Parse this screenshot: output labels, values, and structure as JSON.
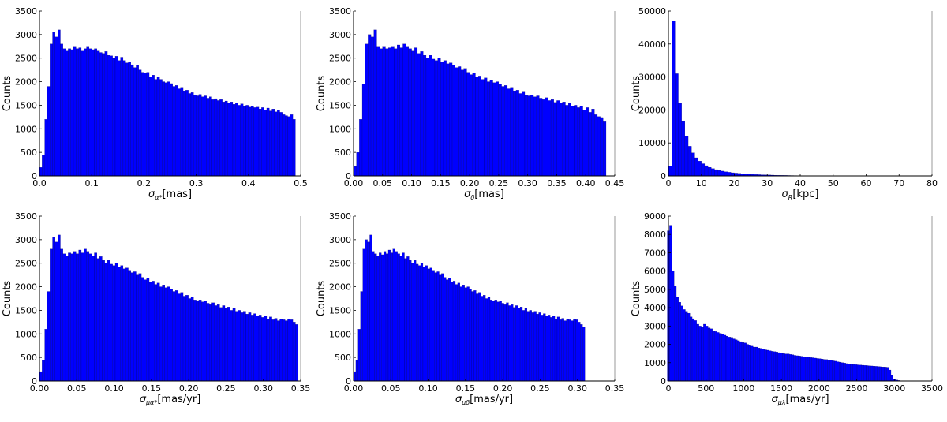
{
  "chart_data": [
    {
      "type": "bar",
      "xlabel_sym": "σ",
      "xlabel_sub": "α*",
      "xlabel_unit": "[mas]",
      "ylabel": "Counts",
      "color": "#0000ff",
      "xlim": [
        0,
        0.5
      ],
      "ylim": [
        0,
        3500
      ],
      "xticks": [
        "0.0",
        "0.1",
        "0.2",
        "0.3",
        "0.4",
        "0.5"
      ],
      "yticks": [
        "0",
        "500",
        "1000",
        "1500",
        "2000",
        "2500",
        "3000",
        "3500"
      ],
      "bin_width": 0.005,
      "x": [
        0.005,
        0.01,
        0.015,
        0.02,
        0.025,
        0.03,
        0.035,
        0.04,
        0.045,
        0.05,
        0.055,
        0.06,
        0.065,
        0.07,
        0.075,
        0.08,
        0.085,
        0.09,
        0.095,
        0.1,
        0.105,
        0.11,
        0.115,
        0.12,
        0.125,
        0.13,
        0.135,
        0.14,
        0.145,
        0.15,
        0.155,
        0.16,
        0.165,
        0.17,
        0.175,
        0.18,
        0.185,
        0.19,
        0.195,
        0.2,
        0.205,
        0.21,
        0.215,
        0.22,
        0.225,
        0.23,
        0.235,
        0.24,
        0.245,
        0.25,
        0.255,
        0.26,
        0.265,
        0.27,
        0.275,
        0.28,
        0.285,
        0.29,
        0.295,
        0.3,
        0.305,
        0.31,
        0.315,
        0.32,
        0.325,
        0.33,
        0.335,
        0.34,
        0.345,
        0.35,
        0.355,
        0.36,
        0.365,
        0.37,
        0.375,
        0.38,
        0.385,
        0.39,
        0.395,
        0.4,
        0.405,
        0.41,
        0.415,
        0.42,
        0.425,
        0.43,
        0.435,
        0.44,
        0.445,
        0.45,
        0.455,
        0.46,
        0.465,
        0.47,
        0.475,
        0.48,
        0.485,
        0.49
      ],
      "values": [
        180,
        450,
        1200,
        1900,
        2800,
        3050,
        2950,
        3100,
        2800,
        2700,
        2650,
        2700,
        2680,
        2750,
        2700,
        2720,
        2650,
        2700,
        2750,
        2700,
        2680,
        2700,
        2650,
        2620,
        2600,
        2640,
        2560,
        2550,
        2500,
        2540,
        2450,
        2520,
        2450,
        2400,
        2420,
        2360,
        2300,
        2350,
        2250,
        2200,
        2180,
        2200,
        2100,
        2140,
        2050,
        2100,
        2050,
        2000,
        1980,
        2000,
        1960,
        1900,
        1920,
        1850,
        1880,
        1800,
        1820,
        1750,
        1770,
        1720,
        1700,
        1730,
        1680,
        1700,
        1650,
        1680,
        1620,
        1640,
        1600,
        1620,
        1570,
        1590,
        1550,
        1570,
        1520,
        1550,
        1500,
        1530,
        1480,
        1500,
        1460,
        1480,
        1450,
        1460,
        1420,
        1450,
        1400,
        1440,
        1380,
        1420,
        1360,
        1400,
        1350,
        1300,
        1280,
        1260,
        1300,
        1200
      ]
    },
    {
      "type": "bar",
      "xlabel_sym": "σ",
      "xlabel_sub": "δ",
      "xlabel_unit": "[mas]",
      "ylabel": "Counts",
      "color": "#0000ff",
      "xlim": [
        0,
        0.45
      ],
      "ylim": [
        0,
        3500
      ],
      "xticks": [
        "0.00",
        "0.05",
        "0.10",
        "0.15",
        "0.20",
        "0.25",
        "0.30",
        "0.35",
        "0.40",
        "0.45"
      ],
      "yticks": [
        "0",
        "500",
        "1000",
        "1500",
        "2000",
        "2500",
        "3000",
        "3500"
      ],
      "bin_width": 0.005,
      "x": [
        0.005,
        0.01,
        0.015,
        0.02,
        0.025,
        0.03,
        0.035,
        0.04,
        0.045,
        0.05,
        0.055,
        0.06,
        0.065,
        0.07,
        0.075,
        0.08,
        0.085,
        0.09,
        0.095,
        0.1,
        0.105,
        0.11,
        0.115,
        0.12,
        0.125,
        0.13,
        0.135,
        0.14,
        0.145,
        0.15,
        0.155,
        0.16,
        0.165,
        0.17,
        0.175,
        0.18,
        0.185,
        0.19,
        0.195,
        0.2,
        0.205,
        0.21,
        0.215,
        0.22,
        0.225,
        0.23,
        0.235,
        0.24,
        0.245,
        0.25,
        0.255,
        0.26,
        0.265,
        0.27,
        0.275,
        0.28,
        0.285,
        0.29,
        0.295,
        0.3,
        0.305,
        0.31,
        0.315,
        0.32,
        0.325,
        0.33,
        0.335,
        0.34,
        0.345,
        0.35,
        0.355,
        0.36,
        0.365,
        0.37,
        0.375,
        0.38,
        0.385,
        0.39,
        0.395,
        0.4,
        0.405,
        0.41,
        0.415,
        0.42,
        0.425,
        0.43,
        0.435
      ],
      "values": [
        200,
        500,
        1200,
        1950,
        2800,
        3000,
        2950,
        3100,
        2750,
        2700,
        2750,
        2700,
        2720,
        2750,
        2700,
        2780,
        2720,
        2800,
        2750,
        2700,
        2650,
        2720,
        2600,
        2640,
        2560,
        2500,
        2560,
        2480,
        2450,
        2500,
        2420,
        2450,
        2380,
        2400,
        2350,
        2300,
        2320,
        2250,
        2280,
        2200,
        2150,
        2180,
        2100,
        2120,
        2050,
        2080,
        2000,
        2040,
        1980,
        2000,
        1950,
        1900,
        1920,
        1850,
        1880,
        1800,
        1820,
        1750,
        1780,
        1720,
        1700,
        1720,
        1680,
        1700,
        1650,
        1620,
        1660,
        1600,
        1620,
        1560,
        1600,
        1550,
        1570,
        1500,
        1540,
        1480,
        1500,
        1450,
        1480,
        1400,
        1450,
        1350,
        1420,
        1300,
        1260,
        1240,
        1150
      ]
    },
    {
      "type": "bar",
      "xlabel_sym": "σ",
      "xlabel_sub": "R",
      "xlabel_unit": "[kpc]",
      "ylabel": "Counts",
      "color": "#0000ff",
      "xlim": [
        0,
        80
      ],
      "ylim": [
        0,
        50000
      ],
      "xticks": [
        "0",
        "10",
        "20",
        "30",
        "40",
        "50",
        "60",
        "70",
        "80"
      ],
      "yticks": [
        "0",
        "10000",
        "20000",
        "30000",
        "40000",
        "50000"
      ],
      "bin_width": 1,
      "x": [
        1,
        2,
        3,
        4,
        5,
        6,
        7,
        8,
        9,
        10,
        11,
        12,
        13,
        14,
        15,
        16,
        17,
        18,
        19,
        20,
        21,
        22,
        23,
        24,
        25,
        26,
        27,
        28,
        29,
        30,
        31,
        32,
        33,
        34,
        35,
        36,
        37,
        38,
        39,
        40,
        41,
        42,
        43,
        44
      ],
      "values": [
        3000,
        47000,
        31000,
        22000,
        16500,
        12000,
        9000,
        7000,
        5500,
        4500,
        3700,
        3100,
        2600,
        2200,
        1900,
        1650,
        1450,
        1250,
        1100,
        950,
        850,
        750,
        650,
        580,
        520,
        460,
        410,
        370,
        330,
        300,
        270,
        240,
        210,
        190,
        170,
        150,
        130,
        115,
        100,
        90,
        80,
        70,
        60,
        50
      ]
    },
    {
      "type": "bar",
      "xlabel_sym": "σ",
      "xlabel_sub": "μα*",
      "xlabel_unit": "[mas/yr]",
      "ylabel": "Counts",
      "color": "#0000ff",
      "xlim": [
        0,
        0.35
      ],
      "ylim": [
        0,
        3500
      ],
      "xticks": [
        "0.00",
        "0.05",
        "0.10",
        "0.15",
        "0.20",
        "0.25",
        "0.30",
        "0.35"
      ],
      "yticks": [
        "0",
        "500",
        "1000",
        "1500",
        "2000",
        "2500",
        "3000",
        "3500"
      ],
      "bin_width": 0.0035,
      "x": [
        0.0035,
        0.007,
        0.0105,
        0.014,
        0.0175,
        0.021,
        0.0245,
        0.028,
        0.0315,
        0.035,
        0.0385,
        0.042,
        0.0455,
        0.049,
        0.0525,
        0.056,
        0.0595,
        0.063,
        0.0665,
        0.07,
        0.0735,
        0.077,
        0.0805,
        0.084,
        0.0875,
        0.091,
        0.0945,
        0.098,
        0.1015,
        0.105,
        0.1085,
        0.112,
        0.1155,
        0.119,
        0.1225,
        0.126,
        0.1295,
        0.133,
        0.1365,
        0.14,
        0.1435,
        0.147,
        0.1505,
        0.154,
        0.1575,
        0.161,
        0.1645,
        0.168,
        0.1715,
        0.175,
        0.1785,
        0.182,
        0.1855,
        0.189,
        0.1925,
        0.196,
        0.1995,
        0.203,
        0.2065,
        0.21,
        0.2135,
        0.217,
        0.2205,
        0.224,
        0.2275,
        0.231,
        0.2345,
        0.238,
        0.2415,
        0.245,
        0.2485,
        0.252,
        0.2555,
        0.259,
        0.2625,
        0.266,
        0.2695,
        0.273,
        0.2765,
        0.28,
        0.2835,
        0.287,
        0.2905,
        0.294,
        0.2975,
        0.301,
        0.3045,
        0.308,
        0.3115,
        0.315,
        0.3185,
        0.322,
        0.3255,
        0.329,
        0.3325,
        0.336,
        0.3395,
        0.343,
        0.3465
      ],
      "values": [
        200,
        450,
        1100,
        1900,
        2800,
        3050,
        2950,
        3100,
        2800,
        2700,
        2650,
        2720,
        2700,
        2750,
        2700,
        2780,
        2720,
        2800,
        2750,
        2700,
        2650,
        2720,
        2600,
        2640,
        2560,
        2500,
        2560,
        2480,
        2450,
        2500,
        2420,
        2450,
        2380,
        2400,
        2350,
        2300,
        2320,
        2250,
        2280,
        2200,
        2150,
        2180,
        2100,
        2120,
        2050,
        2080,
        2000,
        2040,
        1980,
        2000,
        1950,
        1900,
        1920,
        1850,
        1880,
        1800,
        1820,
        1750,
        1780,
        1720,
        1700,
        1720,
        1680,
        1700,
        1650,
        1620,
        1660,
        1600,
        1620,
        1560,
        1600,
        1550,
        1570,
        1500,
        1540,
        1480,
        1500,
        1450,
        1480,
        1420,
        1450,
        1400,
        1430,
        1380,
        1400,
        1350,
        1380,
        1320,
        1360,
        1300,
        1330,
        1280,
        1310,
        1300,
        1280,
        1320,
        1300,
        1250,
        1200
      ]
    },
    {
      "type": "bar",
      "xlabel_sym": "σ",
      "xlabel_sub": "μδ",
      "xlabel_unit": "[mas/yr]",
      "ylabel": "Counts",
      "color": "#0000ff",
      "xlim": [
        0,
        0.35
      ],
      "ylim": [
        0,
        3500
      ],
      "xticks": [
        "0.00",
        "0.05",
        "0.10",
        "0.15",
        "0.20",
        "0.25",
        "0.30",
        "0.35"
      ],
      "yticks": [
        "0",
        "500",
        "1000",
        "1500",
        "2000",
        "2500",
        "3000",
        "3500"
      ],
      "bin_width": 0.0031,
      "x": [
        0.0031,
        0.0062,
        0.0093,
        0.0124,
        0.0155,
        0.0186,
        0.0217,
        0.0248,
        0.0279,
        0.031,
        0.0341,
        0.0372,
        0.0403,
        0.0434,
        0.0465,
        0.0496,
        0.0527,
        0.0558,
        0.0589,
        0.062,
        0.0651,
        0.0682,
        0.0713,
        0.0744,
        0.0775,
        0.0806,
        0.0837,
        0.0868,
        0.0899,
        0.093,
        0.0961,
        0.0992,
        0.1023,
        0.1054,
        0.1085,
        0.1116,
        0.1147,
        0.1178,
        0.1209,
        0.124,
        0.1271,
        0.1302,
        0.1333,
        0.1364,
        0.1395,
        0.1426,
        0.1457,
        0.1488,
        0.1519,
        0.155,
        0.1581,
        0.1612,
        0.1643,
        0.1674,
        0.1705,
        0.1736,
        0.1767,
        0.1798,
        0.1829,
        0.186,
        0.1891,
        0.1922,
        0.1953,
        0.1984,
        0.2015,
        0.2046,
        0.2077,
        0.2108,
        0.2139,
        0.217,
        0.2201,
        0.2232,
        0.2263,
        0.2294,
        0.2325,
        0.2356,
        0.2387,
        0.2418,
        0.2449,
        0.248,
        0.2511,
        0.2542,
        0.2573,
        0.2604,
        0.2635,
        0.2666,
        0.2697,
        0.2728,
        0.2759,
        0.279,
        0.2821,
        0.2852,
        0.2883,
        0.2914,
        0.2945,
        0.2976,
        0.3007,
        0.3038,
        0.3069,
        0.31
      ],
      "values": [
        200,
        450,
        1100,
        1900,
        2800,
        3000,
        2950,
        3100,
        2750,
        2700,
        2650,
        2720,
        2680,
        2750,
        2700,
        2780,
        2720,
        2800,
        2750,
        2700,
        2650,
        2720,
        2600,
        2640,
        2560,
        2500,
        2560,
        2480,
        2450,
        2500,
        2420,
        2450,
        2380,
        2400,
        2350,
        2300,
        2320,
        2250,
        2280,
        2200,
        2150,
        2180,
        2100,
        2120,
        2050,
        2080,
        2000,
        2040,
        1980,
        2000,
        1950,
        1900,
        1920,
        1850,
        1880,
        1800,
        1820,
        1750,
        1780,
        1720,
        1700,
        1720,
        1680,
        1700,
        1650,
        1620,
        1660,
        1600,
        1620,
        1560,
        1600,
        1550,
        1570,
        1500,
        1540,
        1480,
        1500,
        1450,
        1480,
        1420,
        1450,
        1400,
        1430,
        1380,
        1400,
        1350,
        1380,
        1320,
        1360,
        1300,
        1330,
        1280,
        1310,
        1300,
        1280,
        1320,
        1300,
        1250,
        1200,
        1150
      ]
    },
    {
      "type": "bar",
      "xlabel_sym": "σ",
      "xlabel_sub": "μλ",
      "xlabel_unit": "[mas/yr]",
      "ylabel": "Counts",
      "color": "#0000ff",
      "xlim": [
        0,
        3500
      ],
      "ylim": [
        0,
        9000
      ],
      "xticks": [
        "0",
        "500",
        "1000",
        "1500",
        "2000",
        "2500",
        "3000",
        "3500"
      ],
      "yticks": [
        "0",
        "1000",
        "2000",
        "3000",
        "4000",
        "5000",
        "6000",
        "7000",
        "8000",
        "9000"
      ],
      "bin_width": 30,
      "x": [
        15,
        45,
        75,
        105,
        135,
        165,
        195,
        225,
        255,
        285,
        315,
        345,
        375,
        405,
        435,
        465,
        495,
        525,
        555,
        585,
        615,
        645,
        675,
        705,
        735,
        765,
        795,
        825,
        855,
        885,
        915,
        945,
        975,
        1005,
        1035,
        1065,
        1095,
        1125,
        1155,
        1185,
        1215,
        1245,
        1275,
        1305,
        1335,
        1365,
        1395,
        1425,
        1455,
        1485,
        1515,
        1545,
        1575,
        1605,
        1635,
        1665,
        1695,
        1725,
        1755,
        1785,
        1815,
        1845,
        1875,
        1905,
        1935,
        1965,
        1995,
        2025,
        2055,
        2085,
        2115,
        2145,
        2175,
        2205,
        2235,
        2265,
        2295,
        2325,
        2355,
        2385,
        2415,
        2445,
        2475,
        2505,
        2535,
        2565,
        2595,
        2625,
        2655,
        2685,
        2715,
        2745,
        2775,
        2805,
        2835,
        2865,
        2895,
        2925,
        2955,
        2985,
        3015,
        3045,
        3075,
        3105
      ],
      "values": [
        8200,
        8500,
        6000,
        5200,
        4600,
        4300,
        4100,
        3900,
        3800,
        3700,
        3500,
        3400,
        3300,
        3100,
        3000,
        2950,
        3100,
        3000,
        2900,
        2850,
        2750,
        2700,
        2650,
        2600,
        2550,
        2500,
        2450,
        2400,
        2380,
        2300,
        2250,
        2200,
        2150,
        2100,
        2080,
        2000,
        1950,
        1900,
        1850,
        1850,
        1800,
        1780,
        1750,
        1700,
        1680,
        1650,
        1620,
        1600,
        1580,
        1550,
        1520,
        1500,
        1480,
        1480,
        1450,
        1430,
        1400,
        1380,
        1370,
        1350,
        1330,
        1320,
        1300,
        1280,
        1270,
        1250,
        1230,
        1220,
        1200,
        1180,
        1170,
        1150,
        1130,
        1100,
        1080,
        1050,
        1030,
        1000,
        980,
        950,
        940,
        920,
        900,
        890,
        880,
        870,
        860,
        850,
        840,
        830,
        820,
        810,
        800,
        790,
        780,
        770,
        760,
        750,
        600,
        300,
        100,
        50,
        30,
        10
      ]
    }
  ]
}
